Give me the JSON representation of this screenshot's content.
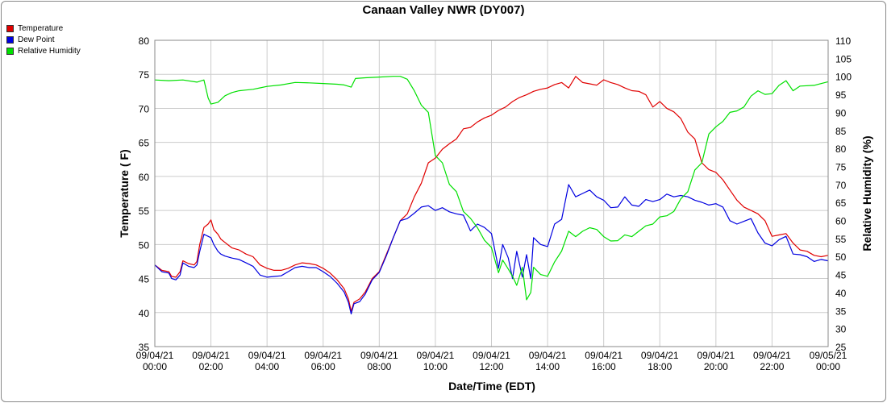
{
  "chart_data": {
    "type": "line",
    "title": "Canaan Valley NWR (DY007)",
    "xlabel": "Date/Time (EDT)",
    "ylabel_left": "Temperature ( F)",
    "ylabel_right": "Relative Humidity (%)",
    "ylim_left": [
      35,
      80
    ],
    "ylim_right": [
      25,
      110
    ],
    "xlim_hours": [
      0,
      24
    ],
    "grid": true,
    "legend_position": "top-left",
    "x_ticks": [
      {
        "date": "09/04/21",
        "time": "00:00"
      },
      {
        "date": "09/04/21",
        "time": "02:00"
      },
      {
        "date": "09/04/21",
        "time": "04:00"
      },
      {
        "date": "09/04/21",
        "time": "06:00"
      },
      {
        "date": "09/04/21",
        "time": "08:00"
      },
      {
        "date": "09/04/21",
        "time": "10:00"
      },
      {
        "date": "09/04/21",
        "time": "12:00"
      },
      {
        "date": "09/04/21",
        "time": "14:00"
      },
      {
        "date": "09/04/21",
        "time": "16:00"
      },
      {
        "date": "09/04/21",
        "time": "18:00"
      },
      {
        "date": "09/04/21",
        "time": "20:00"
      },
      {
        "date": "09/04/21",
        "time": "22:00"
      },
      {
        "date": "09/05/21",
        "time": "00:00"
      }
    ],
    "y_ticks_left": [
      35,
      40,
      45,
      50,
      55,
      60,
      65,
      70,
      75,
      80
    ],
    "y_ticks_right": [
      25,
      30,
      35,
      40,
      45,
      50,
      55,
      60,
      65,
      70,
      75,
      80,
      85,
      90,
      95,
      100,
      105,
      110
    ],
    "series": [
      {
        "name": "Temperature",
        "axis": "left",
        "color": "#e00000",
        "points": [
          [
            0,
            47
          ],
          [
            0.25,
            46.2
          ],
          [
            0.5,
            46
          ],
          [
            0.6,
            45.3
          ],
          [
            0.75,
            45.2
          ],
          [
            0.9,
            46
          ],
          [
            1,
            47.6
          ],
          [
            1.2,
            47.2
          ],
          [
            1.4,
            47
          ],
          [
            1.5,
            47.5
          ],
          [
            1.6,
            50
          ],
          [
            1.75,
            52.5
          ],
          [
            1.9,
            53
          ],
          [
            2.0,
            53.6
          ],
          [
            2.1,
            52.2
          ],
          [
            2.25,
            51.5
          ],
          [
            2.35,
            50.8
          ],
          [
            2.5,
            50.3
          ],
          [
            2.75,
            49.5
          ],
          [
            3,
            49.2
          ],
          [
            3.25,
            48.6
          ],
          [
            3.5,
            48.2
          ],
          [
            3.75,
            47
          ],
          [
            4,
            46.5
          ],
          [
            4.25,
            46.2
          ],
          [
            4.5,
            46.2
          ],
          [
            4.75,
            46.5
          ],
          [
            5,
            47
          ],
          [
            5.25,
            47.3
          ],
          [
            5.5,
            47.2
          ],
          [
            5.75,
            47
          ],
          [
            6,
            46.5
          ],
          [
            6.25,
            45.8
          ],
          [
            6.5,
            44.8
          ],
          [
            6.75,
            43.5
          ],
          [
            6.9,
            42
          ],
          [
            7.0,
            40.2
          ],
          [
            7.1,
            41.5
          ],
          [
            7.3,
            42
          ],
          [
            7.5,
            43
          ],
          [
            7.75,
            45
          ],
          [
            8,
            46
          ],
          [
            8.25,
            48.5
          ],
          [
            8.5,
            51
          ],
          [
            8.75,
            53.5
          ],
          [
            9,
            54.5
          ],
          [
            9.25,
            57
          ],
          [
            9.5,
            59
          ],
          [
            9.75,
            62
          ],
          [
            10,
            62.7
          ],
          [
            10.25,
            64
          ],
          [
            10.5,
            64.8
          ],
          [
            10.75,
            65.5
          ],
          [
            11,
            67
          ],
          [
            11.25,
            67.2
          ],
          [
            11.5,
            68
          ],
          [
            11.75,
            68.6
          ],
          [
            12,
            69
          ],
          [
            12.25,
            69.7
          ],
          [
            12.5,
            70.2
          ],
          [
            12.75,
            71
          ],
          [
            13,
            71.6
          ],
          [
            13.25,
            72
          ],
          [
            13.5,
            72.5
          ],
          [
            13.75,
            72.8
          ],
          [
            14,
            73
          ],
          [
            14.25,
            73.5
          ],
          [
            14.5,
            73.8
          ],
          [
            14.75,
            73
          ],
          [
            15,
            74.7
          ],
          [
            15.25,
            73.8
          ],
          [
            15.5,
            73.6
          ],
          [
            15.75,
            73.4
          ],
          [
            16,
            74.2
          ],
          [
            16.25,
            73.8
          ],
          [
            16.5,
            73.5
          ],
          [
            16.75,
            73
          ],
          [
            17,
            72.6
          ],
          [
            17.25,
            72.5
          ],
          [
            17.5,
            72
          ],
          [
            17.75,
            70.2
          ],
          [
            18,
            71
          ],
          [
            18.25,
            70
          ],
          [
            18.5,
            69.5
          ],
          [
            18.75,
            68.5
          ],
          [
            19,
            66.5
          ],
          [
            19.25,
            65.5
          ],
          [
            19.5,
            62
          ],
          [
            19.75,
            61
          ],
          [
            20,
            60.6
          ],
          [
            20.25,
            59.5
          ],
          [
            20.5,
            58
          ],
          [
            20.75,
            56.5
          ],
          [
            21,
            55.5
          ],
          [
            21.25,
            55
          ],
          [
            21.5,
            54.5
          ],
          [
            21.75,
            53.5
          ],
          [
            22,
            51.2
          ],
          [
            22.25,
            51.4
          ],
          [
            22.5,
            51.6
          ],
          [
            22.75,
            50.2
          ],
          [
            23,
            49.2
          ],
          [
            23.25,
            49
          ],
          [
            23.5,
            48.4
          ],
          [
            23.75,
            48.2
          ],
          [
            24,
            48.4
          ]
        ]
      },
      {
        "name": "Dew Point",
        "axis": "left",
        "color": "#0000e0",
        "points": [
          [
            0,
            47
          ],
          [
            0.25,
            46
          ],
          [
            0.5,
            45.8
          ],
          [
            0.6,
            45
          ],
          [
            0.75,
            44.8
          ],
          [
            0.9,
            45.5
          ],
          [
            1,
            47.3
          ],
          [
            1.2,
            46.8
          ],
          [
            1.4,
            46.6
          ],
          [
            1.5,
            47
          ],
          [
            1.6,
            49
          ],
          [
            1.75,
            51.5
          ],
          [
            1.9,
            51.2
          ],
          [
            2.0,
            51
          ],
          [
            2.1,
            50
          ],
          [
            2.25,
            49
          ],
          [
            2.35,
            48.6
          ],
          [
            2.5,
            48.3
          ],
          [
            2.75,
            48
          ],
          [
            3,
            47.8
          ],
          [
            3.25,
            47.3
          ],
          [
            3.5,
            46.8
          ],
          [
            3.75,
            45.5
          ],
          [
            4,
            45.2
          ],
          [
            4.25,
            45.3
          ],
          [
            4.5,
            45.4
          ],
          [
            4.75,
            46
          ],
          [
            5,
            46.6
          ],
          [
            5.25,
            46.8
          ],
          [
            5.5,
            46.6
          ],
          [
            5.75,
            46.6
          ],
          [
            6,
            46
          ],
          [
            6.25,
            45.3
          ],
          [
            6.5,
            44.3
          ],
          [
            6.75,
            43
          ],
          [
            6.9,
            41.5
          ],
          [
            7.0,
            39.8
          ],
          [
            7.1,
            41.3
          ],
          [
            7.3,
            41.6
          ],
          [
            7.5,
            42.7
          ],
          [
            7.75,
            44.8
          ],
          [
            8,
            45.9
          ],
          [
            8.25,
            48.3
          ],
          [
            8.5,
            51
          ],
          [
            8.75,
            53.5
          ],
          [
            9,
            53.8
          ],
          [
            9.25,
            54.6
          ],
          [
            9.5,
            55.5
          ],
          [
            9.75,
            55.7
          ],
          [
            10,
            55
          ],
          [
            10.25,
            55.4
          ],
          [
            10.5,
            54.8
          ],
          [
            10.75,
            54.5
          ],
          [
            11,
            54.3
          ],
          [
            11.25,
            52
          ],
          [
            11.5,
            53
          ],
          [
            11.75,
            52.5
          ],
          [
            12,
            51.6
          ],
          [
            12.25,
            46.5
          ],
          [
            12.4,
            50
          ],
          [
            12.6,
            48
          ],
          [
            12.75,
            45
          ],
          [
            12.9,
            49
          ],
          [
            13.1,
            45.2
          ],
          [
            13.25,
            48.5
          ],
          [
            13.4,
            45
          ],
          [
            13.5,
            51
          ],
          [
            13.75,
            50
          ],
          [
            14,
            49.7
          ],
          [
            14.25,
            53
          ],
          [
            14.5,
            53.7
          ],
          [
            14.75,
            58.8
          ],
          [
            15,
            57
          ],
          [
            15.25,
            57.5
          ],
          [
            15.5,
            58
          ],
          [
            15.75,
            57
          ],
          [
            16,
            56.5
          ],
          [
            16.25,
            55.4
          ],
          [
            16.5,
            55.5
          ],
          [
            16.75,
            57
          ],
          [
            17,
            55.8
          ],
          [
            17.25,
            55.6
          ],
          [
            17.5,
            56.6
          ],
          [
            17.75,
            56.3
          ],
          [
            18,
            56.6
          ],
          [
            18.25,
            57.4
          ],
          [
            18.5,
            57
          ],
          [
            18.75,
            57.2
          ],
          [
            19,
            57
          ],
          [
            19.25,
            56.5
          ],
          [
            19.5,
            56.2
          ],
          [
            19.75,
            55.8
          ],
          [
            20,
            56
          ],
          [
            20.25,
            55.5
          ],
          [
            20.5,
            53.5
          ],
          [
            20.75,
            53
          ],
          [
            21,
            53.4
          ],
          [
            21.25,
            53.8
          ],
          [
            21.5,
            51.7
          ],
          [
            21.75,
            50.2
          ],
          [
            22,
            49.8
          ],
          [
            22.25,
            50.7
          ],
          [
            22.5,
            51.2
          ],
          [
            22.75,
            48.6
          ],
          [
            23,
            48.5
          ],
          [
            23.25,
            48.2
          ],
          [
            23.5,
            47.5
          ],
          [
            23.75,
            47.8
          ],
          [
            24,
            47.6
          ]
        ]
      },
      {
        "name": "Relative Humidity",
        "axis": "right",
        "color": "#00e000",
        "points": [
          [
            0,
            99
          ],
          [
            0.5,
            98.8
          ],
          [
            1,
            99
          ],
          [
            1.5,
            98.4
          ],
          [
            1.75,
            99
          ],
          [
            1.9,
            94
          ],
          [
            2.0,
            92.3
          ],
          [
            2.25,
            92.8
          ],
          [
            2.5,
            94.6
          ],
          [
            2.75,
            95.5
          ],
          [
            3,
            96
          ],
          [
            3.25,
            96.2
          ],
          [
            3.5,
            96.4
          ],
          [
            3.75,
            96.8
          ],
          [
            4,
            97.2
          ],
          [
            4.5,
            97.6
          ],
          [
            5,
            98.3
          ],
          [
            5.5,
            98.2
          ],
          [
            6,
            98
          ],
          [
            6.5,
            97.8
          ],
          [
            6.75,
            97.6
          ],
          [
            7,
            97
          ],
          [
            7.15,
            99.4
          ],
          [
            7.5,
            99.6
          ],
          [
            8,
            99.8
          ],
          [
            8.5,
            100
          ],
          [
            8.75,
            100
          ],
          [
            9,
            99.2
          ],
          [
            9.25,
            96
          ],
          [
            9.5,
            92
          ],
          [
            9.75,
            90
          ],
          [
            10,
            78
          ],
          [
            10.25,
            76
          ],
          [
            10.5,
            70
          ],
          [
            10.75,
            68
          ],
          [
            11,
            62.5
          ],
          [
            11.25,
            60.6
          ],
          [
            11.5,
            58
          ],
          [
            11.75,
            54.5
          ],
          [
            12,
            52.5
          ],
          [
            12.25,
            45.5
          ],
          [
            12.4,
            49
          ],
          [
            12.6,
            46.5
          ],
          [
            12.75,
            44.5
          ],
          [
            12.9,
            42
          ],
          [
            13.1,
            47
          ],
          [
            13.25,
            38
          ],
          [
            13.4,
            40
          ],
          [
            13.5,
            47
          ],
          [
            13.75,
            45
          ],
          [
            14,
            44.5
          ],
          [
            14.25,
            48.5
          ],
          [
            14.5,
            51.5
          ],
          [
            14.75,
            57
          ],
          [
            15,
            55.5
          ],
          [
            15.25,
            57
          ],
          [
            15.5,
            58
          ],
          [
            15.75,
            57.5
          ],
          [
            16,
            55.5
          ],
          [
            16.25,
            54.3
          ],
          [
            16.5,
            54.4
          ],
          [
            16.75,
            56
          ],
          [
            17,
            55.5
          ],
          [
            17.25,
            57
          ],
          [
            17.5,
            58.5
          ],
          [
            17.75,
            59
          ],
          [
            18,
            61
          ],
          [
            18.25,
            61.3
          ],
          [
            18.5,
            62.5
          ],
          [
            18.75,
            66
          ],
          [
            19,
            68
          ],
          [
            19.25,
            74
          ],
          [
            19.5,
            76
          ],
          [
            19.75,
            84
          ],
          [
            20,
            86
          ],
          [
            20.25,
            87.5
          ],
          [
            20.5,
            90
          ],
          [
            20.75,
            90.4
          ],
          [
            21,
            91.5
          ],
          [
            21.25,
            94.5
          ],
          [
            21.5,
            96
          ],
          [
            21.75,
            95
          ],
          [
            22,
            95.2
          ],
          [
            22.25,
            97.5
          ],
          [
            22.5,
            98.8
          ],
          [
            22.75,
            96
          ],
          [
            23,
            97.3
          ],
          [
            23.5,
            97.5
          ],
          [
            24,
            98.5
          ]
        ]
      }
    ]
  }
}
